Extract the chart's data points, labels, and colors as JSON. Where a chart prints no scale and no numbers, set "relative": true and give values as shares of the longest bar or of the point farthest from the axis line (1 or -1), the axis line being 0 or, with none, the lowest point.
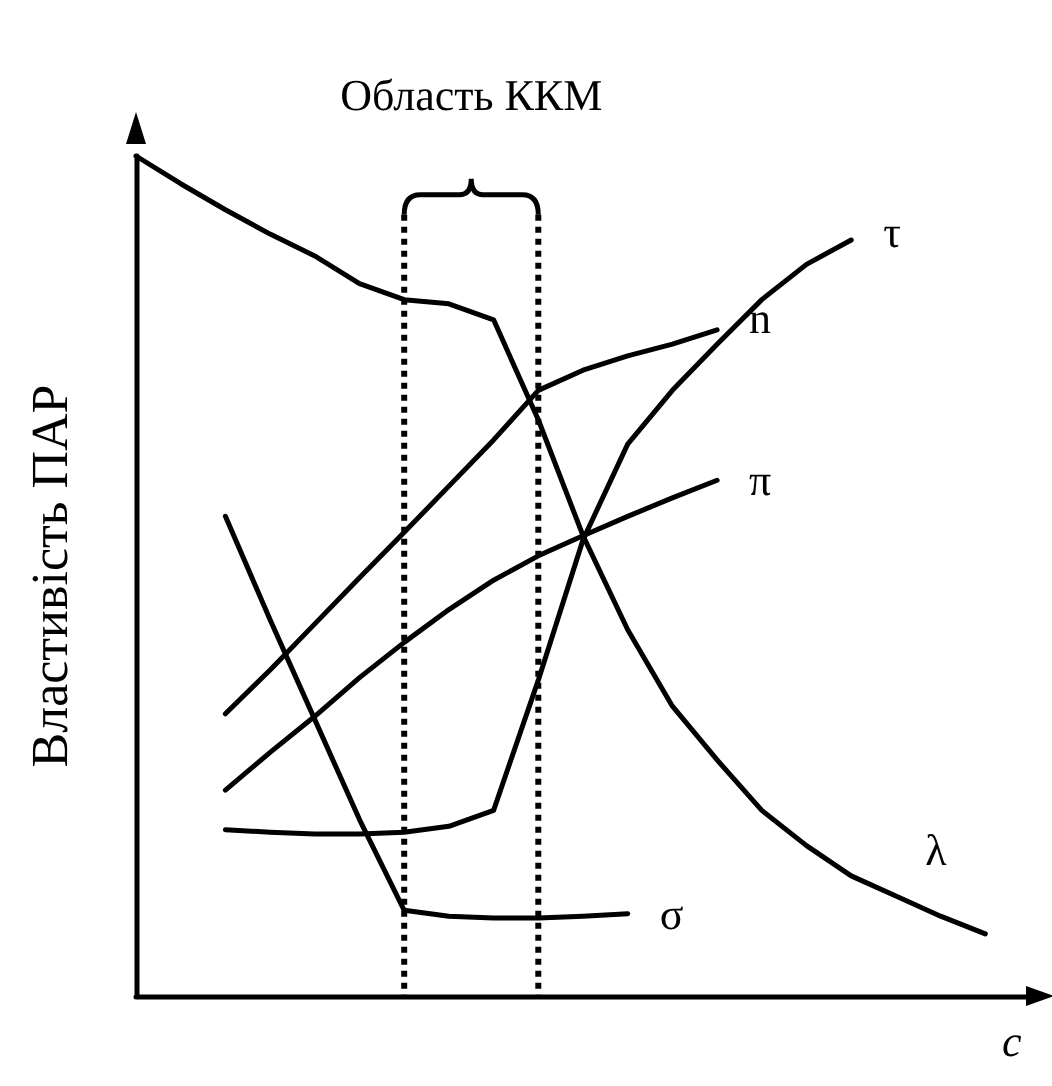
{
  "chart_data": {
    "type": "line",
    "relative": true,
    "xlabel": "c",
    "ylabel": "Властивість ПАР",
    "categories": [
      null,
      null,
      null,
      null,
      null,
      null,
      null,
      null,
      null,
      null,
      null,
      null,
      null,
      null,
      null,
      null,
      null,
      null,
      null,
      null,
      null
    ],
    "series": [
      {
        "name": "λ",
        "color": "#000000",
        "values": [
          1.0,
          0.967,
          0.936,
          0.907,
          0.881,
          0.848,
          0.829,
          0.824,
          0.805,
          0.686,
          0.548,
          0.436,
          0.345,
          0.281,
          0.221,
          0.179,
          0.143,
          0.119,
          0.095,
          0.074,
          null
        ]
      },
      {
        "name": "τ",
        "color": "#000000",
        "values": [
          null,
          null,
          0.198,
          0.195,
          0.193,
          0.193,
          0.195,
          0.202,
          0.221,
          0.376,
          0.543,
          0.657,
          0.721,
          0.776,
          0.829,
          0.871,
          0.9,
          null,
          null,
          null,
          null
        ]
      },
      {
        "name": "n",
        "color": "#000000",
        "values": [
          null,
          null,
          0.336,
          0.388,
          0.443,
          0.498,
          0.552,
          0.607,
          0.662,
          0.721,
          0.745,
          0.762,
          0.776,
          0.793,
          null,
          null,
          null,
          null,
          null,
          null,
          null
        ]
      },
      {
        "name": "π",
        "color": "#000000",
        "values": [
          null,
          null,
          0.245,
          0.29,
          0.333,
          0.379,
          0.421,
          0.46,
          0.495,
          0.524,
          0.548,
          0.571,
          0.593,
          0.614,
          null,
          null,
          null,
          null,
          null,
          null,
          null
        ]
      },
      {
        "name": "σ",
        "color": "#000000",
        "values": [
          null,
          null,
          0.571,
          0.448,
          0.329,
          0.21,
          0.102,
          0.095,
          0.093,
          0.093,
          0.095,
          0.098,
          null,
          null,
          null,
          null,
          null,
          null,
          null,
          null,
          null
        ]
      }
    ],
    "annotations": [
      "Область ККМ"
    ],
    "marker": "none",
    "line_style": "solid",
    "grid": false,
    "legend": false
  }
}
